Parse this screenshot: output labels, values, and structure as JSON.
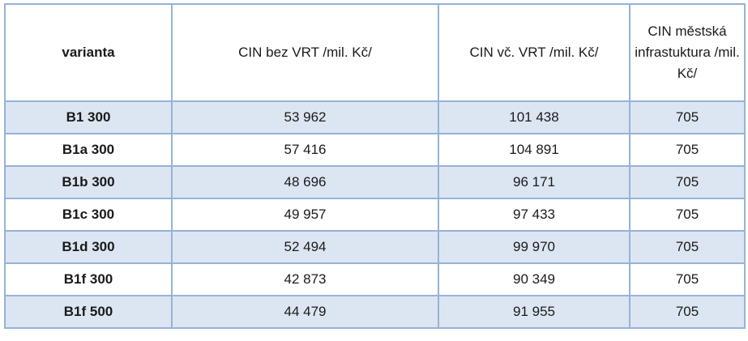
{
  "table": {
    "headers": [
      "varianta",
      "CIN bez VRT /mil. Kč/",
      "CIN vč. VRT /mil. Kč/",
      "CIN městská infrastuktura /mil. Kč/"
    ],
    "rows": [
      [
        "B1 300",
        "53 962",
        "101 438",
        "705"
      ],
      [
        "B1a 300",
        "57 416",
        "104 891",
        "705"
      ],
      [
        "B1b 300",
        "48 696",
        "96 171",
        "705"
      ],
      [
        "B1c 300",
        "49 957",
        "97 433",
        "705"
      ],
      [
        "B1d 300",
        "52 494",
        "99 970",
        "705"
      ],
      [
        "B1f 300",
        "42 873",
        "90 349",
        "705"
      ],
      [
        "B1f 500",
        "44 479",
        "91 955",
        "705"
      ]
    ],
    "colors": {
      "border": "#95b3d7",
      "band": "#dce6f2"
    }
  }
}
